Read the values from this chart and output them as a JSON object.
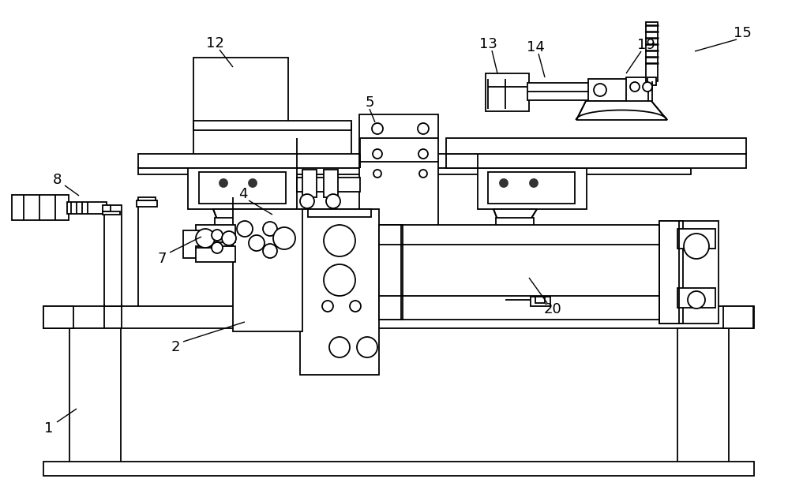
{
  "bg_color": "#ffffff",
  "line_color": "#000000",
  "lw": 1.3,
  "labels": {
    "1": [
      62,
      543,
      72,
      535,
      97,
      518
    ],
    "2": [
      222,
      440,
      232,
      433,
      310,
      408
    ],
    "4": [
      308,
      246,
      315,
      254,
      345,
      272
    ],
    "5": [
      468,
      130,
      468,
      138,
      475,
      155
    ],
    "7": [
      205,
      328,
      215,
      320,
      255,
      300
    ],
    "8": [
      72,
      228,
      82,
      235,
      100,
      248
    ],
    "12": [
      272,
      55,
      278,
      63,
      295,
      85
    ],
    "13": [
      618,
      56,
      623,
      64,
      630,
      93
    ],
    "14": [
      678,
      60,
      682,
      68,
      690,
      98
    ],
    "15": [
      940,
      42,
      933,
      50,
      880,
      65
    ],
    "19": [
      818,
      57,
      812,
      65,
      793,
      93
    ],
    "20": [
      700,
      392,
      693,
      384,
      670,
      352
    ]
  }
}
